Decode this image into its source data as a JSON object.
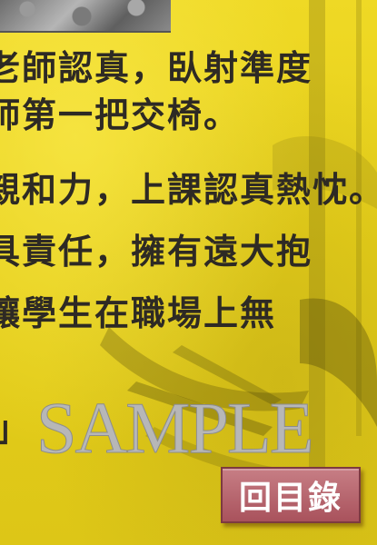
{
  "body_lines": [
    "老師認真，臥射準度",
    "師第一把交椅。",
    "親和力，上課認真熱忱。",
    "具責任，擁有遠大抱",
    "讓學生在職場上無"
  ],
  "fragment": "」",
  "watermark": "SAMPLE",
  "back_button": {
    "label": "回目錄"
  },
  "colors": {
    "background": "#e8d21a",
    "text": "#2e2a24",
    "button": "#a9525c"
  }
}
